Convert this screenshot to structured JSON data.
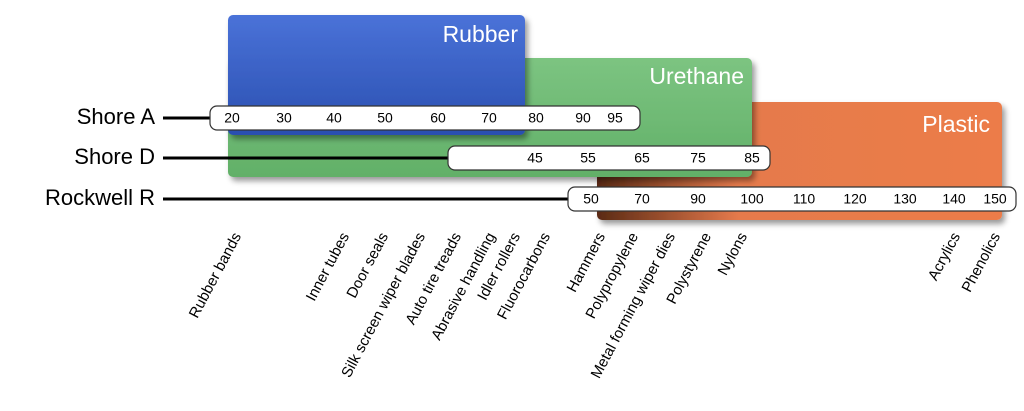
{
  "materials": [
    {
      "label": "Rubber"
    },
    {
      "label": "Urethane"
    },
    {
      "label": "Plastic"
    }
  ],
  "scales": [
    {
      "label": "Shore A",
      "ticks": [
        20,
        30,
        40,
        50,
        60,
        70,
        80,
        90,
        95
      ]
    },
    {
      "label": "Shore D",
      "ticks": [
        45,
        55,
        65,
        75,
        85
      ]
    },
    {
      "label": "Rockwell R",
      "ticks": [
        50,
        70,
        90,
        100,
        110,
        120,
        130,
        140,
        150
      ]
    }
  ],
  "examples": [
    "Rubber bands",
    "Inner tubes",
    "Door seals",
    "Silk screen wiper blades",
    "Auto tire treads",
    "Abrasive handling",
    "Idler rollers",
    "Fluorocarbons",
    "Hammers",
    "Polypropylene",
    "Metal forming wiper dies",
    "Polystyrene",
    "Nylons",
    "Acrylics",
    "Phenolics"
  ]
}
